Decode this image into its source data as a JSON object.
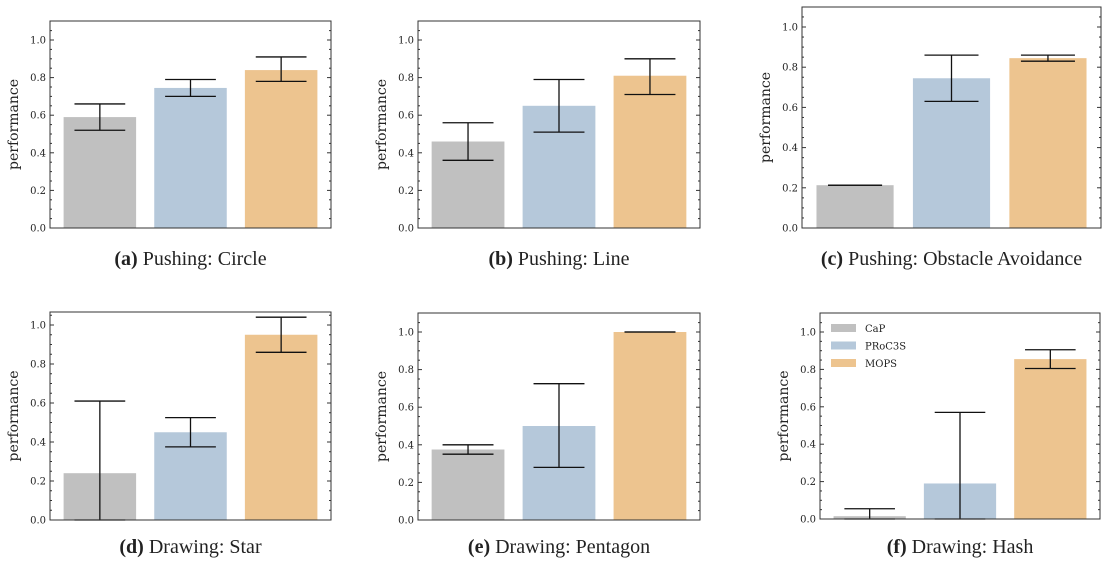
{
  "chart_data": [
    {
      "type": "bar",
      "panel": "(a)",
      "title": "Pushing: Circle",
      "ylabel": "performance",
      "ylim": [
        0,
        1.1
      ],
      "yticks": [
        "0.0",
        "0.2",
        "0.4",
        "0.6",
        "0.8",
        "1.0"
      ],
      "categories": [
        "CaP",
        "PRoC3S",
        "MOPS"
      ],
      "values": [
        0.59,
        0.745,
        0.84
      ],
      "error_low": [
        0.52,
        0.7,
        0.78
      ],
      "error_high": [
        0.66,
        0.79,
        0.91
      ]
    },
    {
      "type": "bar",
      "panel": "(b)",
      "title": "Pushing: Line",
      "ylabel": "performance",
      "ylim": [
        0,
        1.1
      ],
      "yticks": [
        "0.0",
        "0.2",
        "0.4",
        "0.6",
        "0.8",
        "1.0"
      ],
      "categories": [
        "CaP",
        "PRoC3S",
        "MOPS"
      ],
      "values": [
        0.46,
        0.65,
        0.81
      ],
      "error_low": [
        0.36,
        0.51,
        0.71
      ],
      "error_high": [
        0.56,
        0.79,
        0.9
      ]
    },
    {
      "type": "bar",
      "panel": "(c)",
      "title": "Pushing: Obstacle Avoidance",
      "ylabel": "performance",
      "ylim": [
        0,
        1.1
      ],
      "yticks": [
        "0.0",
        "0.2",
        "0.4",
        "0.6",
        "0.8",
        "1.0"
      ],
      "categories": [
        "CaP",
        "PRoC3S",
        "MOPS"
      ],
      "values": [
        0.213,
        0.745,
        0.845
      ],
      "error_low": [
        0.213,
        0.63,
        0.83
      ],
      "error_high": [
        0.213,
        0.86,
        0.86
      ]
    },
    {
      "type": "bar",
      "panel": "(d)",
      "title": "Drawing: Star",
      "ylabel": "performance",
      "ylim": [
        0,
        1.1
      ],
      "yticks": [
        "0.0",
        "0.2",
        "0.4",
        "0.6",
        "0.8",
        "1.0"
      ],
      "categories": [
        "CaP",
        "PRoC3S",
        "MOPS"
      ],
      "values": [
        0.24,
        0.45,
        0.95
      ],
      "error_low": [
        0.0,
        0.375,
        0.86
      ],
      "error_high": [
        0.61,
        0.525,
        1.04
      ]
    },
    {
      "type": "bar",
      "panel": "(e)",
      "title": "Drawing: Pentagon",
      "ylabel": "performance",
      "ylim": [
        0,
        1.1
      ],
      "yticks": [
        "0.0",
        "0.2",
        "0.4",
        "0.6",
        "0.8",
        "1.0"
      ],
      "categories": [
        "CaP",
        "PRoC3S",
        "MOPS"
      ],
      "values": [
        0.375,
        0.5,
        1.0
      ],
      "error_low": [
        0.35,
        0.28,
        1.0
      ],
      "error_high": [
        0.4,
        0.725,
        1.0
      ]
    },
    {
      "type": "bar",
      "panel": "(f)",
      "title": "Drawing: Hash",
      "ylabel": "performance",
      "ylim": [
        0,
        1.1
      ],
      "yticks": [
        "0.0",
        "0.2",
        "0.4",
        "0.6",
        "0.8",
        "1.0"
      ],
      "categories": [
        "CaP",
        "PRoC3S",
        "MOPS"
      ],
      "values": [
        0.015,
        0.19,
        0.855
      ],
      "error_low": [
        0.0,
        0.0,
        0.805
      ],
      "error_high": [
        0.055,
        0.57,
        0.905
      ],
      "legend": {
        "placement": "top-left",
        "entries": [
          "CaP",
          "PRoC3S",
          "MOPS"
        ]
      }
    }
  ],
  "colors": {
    "CaP": "#c0c0c0",
    "PRoC3S": "#b5c8da",
    "MOPS": "#edc48f",
    "error_bar": "#111111",
    "axis": "#333333"
  }
}
